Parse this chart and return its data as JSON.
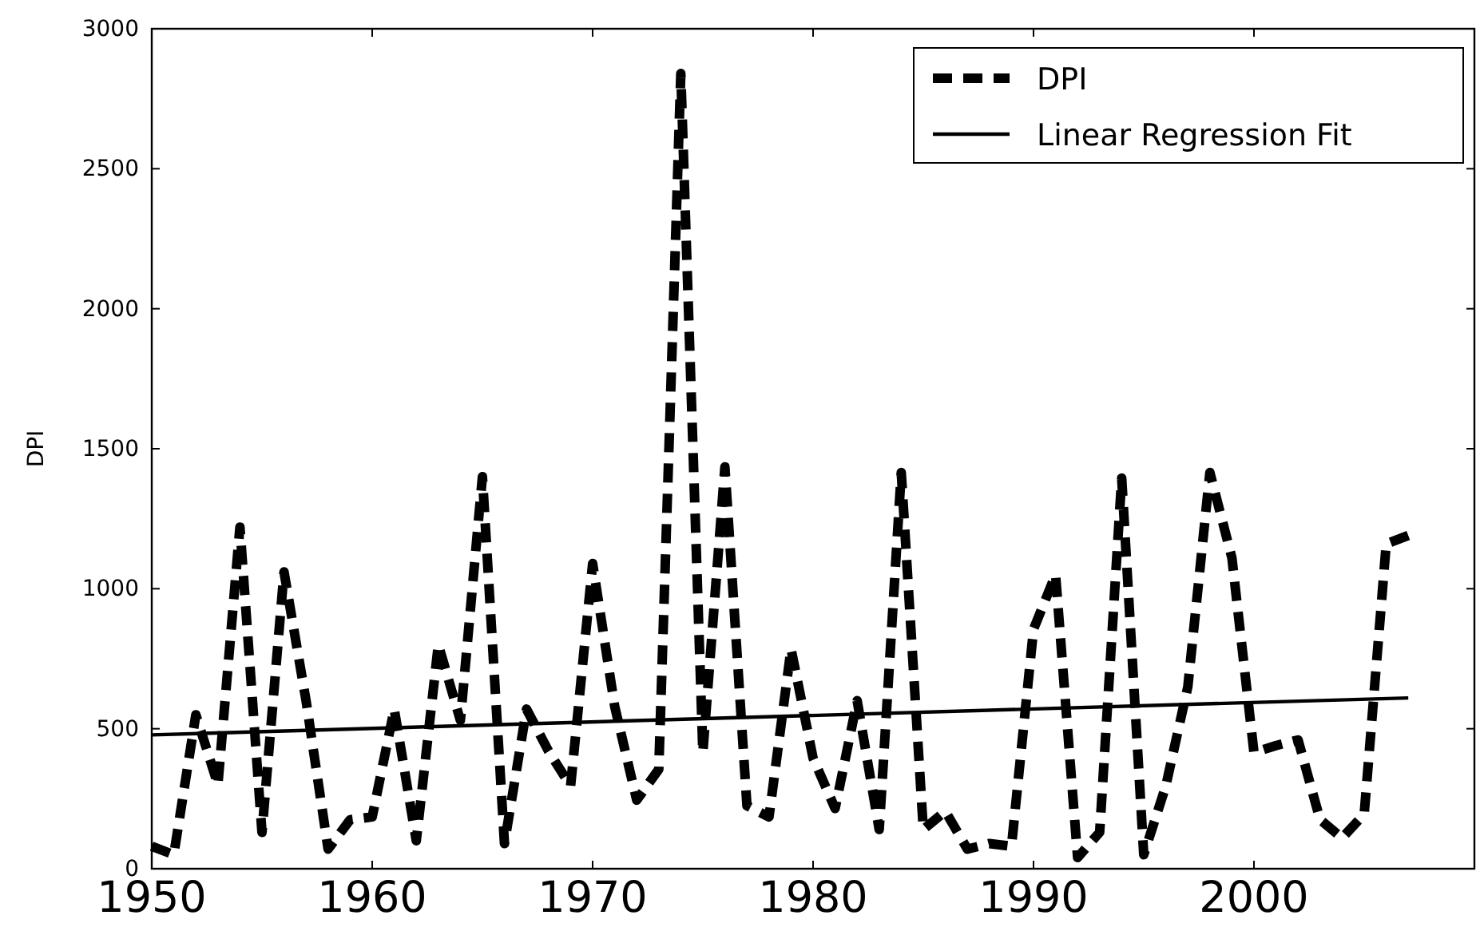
{
  "chart_data": {
    "type": "line",
    "ylabel": "DPI",
    "xlim": [
      1950,
      2010
    ],
    "ylim": [
      0,
      3000
    ],
    "xticks": [
      1950,
      1960,
      1970,
      1980,
      1990,
      2000
    ],
    "yticks": [
      0,
      500,
      1000,
      1500,
      2000,
      2500,
      3000
    ],
    "x": [
      1950,
      1951,
      1952,
      1953,
      1954,
      1955,
      1956,
      1957,
      1958,
      1959,
      1960,
      1961,
      1962,
      1963,
      1964,
      1965,
      1966,
      1967,
      1968,
      1969,
      1970,
      1971,
      1972,
      1973,
      1974,
      1975,
      1976,
      1977,
      1978,
      1979,
      1980,
      1981,
      1982,
      1983,
      1984,
      1985,
      1986,
      1987,
      1988,
      1989,
      1990,
      1991,
      1992,
      1993,
      1994,
      1995,
      1996,
      1997,
      1998,
      1999,
      2000,
      2001,
      2002,
      2003,
      2004,
      2005,
      2006,
      2007
    ],
    "series": [
      {
        "name": "DPI",
        "color": "#000000",
        "line_style": "dashed",
        "values": [
          80,
          50,
          550,
          300,
          1220,
          130,
          1060,
          600,
          70,
          175,
          185,
          570,
          100,
          800,
          530,
          1400,
          90,
          570,
          420,
          295,
          1090,
          580,
          245,
          355,
          2840,
          415,
          1435,
          225,
          185,
          785,
          395,
          215,
          600,
          140,
          1415,
          140,
          205,
          70,
          90,
          80,
          855,
          1050,
          40,
          130,
          1395,
          50,
          295,
          650,
          1415,
          1110,
          415,
          440,
          460,
          175,
          110,
          195,
          1160,
          1190
        ]
      },
      {
        "name": "Linear Regression Fit",
        "type": "line",
        "color": "#000000",
        "line_style": "solid",
        "x": [
          1950,
          2007
        ],
        "values": [
          478,
          610
        ]
      }
    ],
    "grid": false,
    "legend": "top right"
  }
}
